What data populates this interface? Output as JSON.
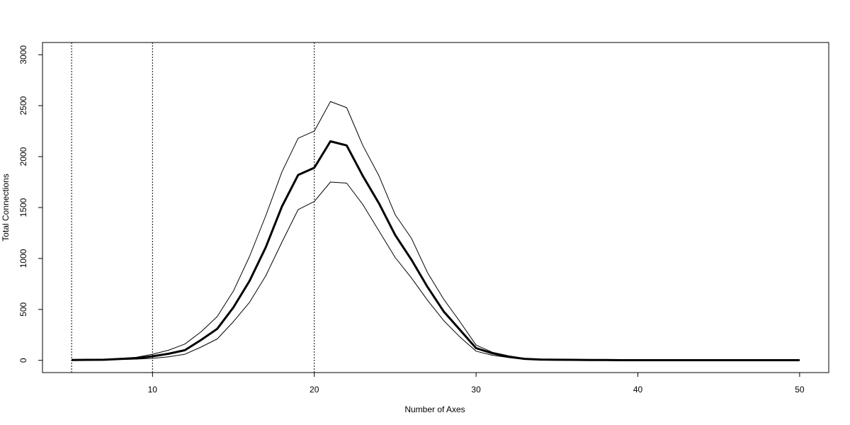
{
  "chart_data": {
    "type": "line",
    "title": "",
    "xlabel": "Number of Axes",
    "ylabel": "Total Connections",
    "xlim": [
      3.2,
      51.8
    ],
    "ylim": [
      -120,
      3120
    ],
    "xticks": [
      10,
      20,
      30,
      40,
      50
    ],
    "yticks": [
      0,
      500,
      1000,
      1500,
      2000,
      2500,
      3000
    ],
    "vlines": [
      5,
      10,
      20
    ],
    "x": [
      5,
      6,
      7,
      8,
      9,
      10,
      11,
      12,
      13,
      14,
      15,
      16,
      17,
      18,
      19,
      20,
      21,
      22,
      23,
      24,
      25,
      26,
      27,
      28,
      29,
      30,
      31,
      32,
      33,
      34,
      35,
      36,
      37,
      38,
      39,
      40,
      41,
      42,
      43,
      44,
      45,
      46,
      47,
      48,
      49,
      50
    ],
    "series": [
      {
        "role": "upper",
        "values": [
          5,
          6,
          8,
          20,
          30,
          60,
          100,
          160,
          280,
          430,
          680,
          1020,
          1420,
          1850,
          2180,
          2250,
          2540,
          2480,
          2110,
          1810,
          1430,
          1200,
          860,
          600,
          380,
          150,
          80,
          45,
          20,
          10,
          8,
          6,
          5,
          4,
          3,
          3,
          3,
          2,
          2,
          2,
          2,
          2,
          2,
          2,
          2,
          2
        ]
      },
      {
        "role": "mean",
        "values": [
          4,
          5,
          6,
          14,
          20,
          40,
          65,
          100,
          200,
          310,
          520,
          780,
          1110,
          1510,
          1820,
          1890,
          2150,
          2110,
          1810,
          1540,
          1230,
          990,
          720,
          480,
          300,
          120,
          70,
          35,
          15,
          8,
          6,
          5,
          4,
          3,
          2,
          2,
          2,
          2,
          2,
          2,
          2,
          2,
          2,
          2,
          2,
          2
        ]
      },
      {
        "role": "lower",
        "values": [
          3,
          4,
          5,
          9,
          12,
          20,
          35,
          60,
          130,
          210,
          380,
          570,
          830,
          1160,
          1480,
          1560,
          1750,
          1740,
          1530,
          1270,
          1010,
          810,
          590,
          390,
          230,
          90,
          50,
          28,
          12,
          6,
          5,
          4,
          3,
          2,
          2,
          2,
          2,
          2,
          2,
          2,
          2,
          2,
          2,
          2,
          2,
          2
        ]
      }
    ]
  }
}
